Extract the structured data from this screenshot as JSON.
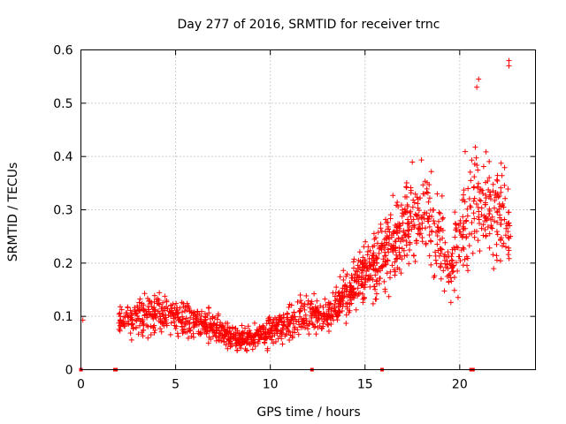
{
  "chart_data": {
    "type": "scatter",
    "title": "Day 277 of 2016, SRMTID for receiver trnc",
    "xlabel": "GPS time / hours",
    "ylabel": "SRMTID / TECUs",
    "xlim": [
      0,
      24
    ],
    "ylim": [
      0,
      0.6
    ],
    "xticks": [
      0,
      5,
      10,
      15,
      20
    ],
    "xtick_labels": [
      "0",
      "5",
      "10",
      "15",
      "20"
    ],
    "yticks": [
      0,
      0.1,
      0.2,
      0.3,
      0.4,
      0.5,
      0.6
    ],
    "ytick_labels": [
      "0",
      "0.1",
      "0.2",
      "0.3",
      "0.4",
      "0.5",
      "0.6"
    ],
    "grid": true,
    "marker": "plus",
    "color": "#ff0000",
    "profile_note": "dense scatter approximated by trend envelope (hour, center, half-spread)",
    "profile": [
      [
        2.0,
        0.09,
        0.04
      ],
      [
        3.0,
        0.1,
        0.05
      ],
      [
        4.0,
        0.11,
        0.06
      ],
      [
        5.0,
        0.1,
        0.05
      ],
      [
        6.0,
        0.09,
        0.05
      ],
      [
        7.0,
        0.08,
        0.04
      ],
      [
        8.0,
        0.06,
        0.03
      ],
      [
        9.0,
        0.06,
        0.03
      ],
      [
        10.0,
        0.07,
        0.04
      ],
      [
        11.0,
        0.09,
        0.05
      ],
      [
        12.0,
        0.1,
        0.05
      ],
      [
        13.0,
        0.1,
        0.05
      ],
      [
        14.0,
        0.14,
        0.06
      ],
      [
        15.0,
        0.18,
        0.08
      ],
      [
        16.0,
        0.22,
        0.1
      ],
      [
        17.0,
        0.26,
        0.11
      ],
      [
        18.0,
        0.3,
        0.13
      ],
      [
        19.0,
        0.24,
        0.12
      ],
      [
        19.5,
        0.18,
        0.08
      ],
      [
        20.0,
        0.26,
        0.14
      ],
      [
        21.0,
        0.32,
        0.15
      ],
      [
        22.0,
        0.3,
        0.14
      ],
      [
        22.7,
        0.28,
        0.12
      ]
    ],
    "tail_points": [
      [
        0.1,
        0.093
      ],
      [
        22.6,
        0.58
      ],
      [
        22.6,
        0.57
      ],
      [
        21.0,
        0.545
      ],
      [
        20.9,
        0.53
      ]
    ],
    "data_gaps_hours": [
      0.0,
      1.8,
      1.85,
      12.2,
      15.9,
      20.6,
      20.7
    ]
  }
}
